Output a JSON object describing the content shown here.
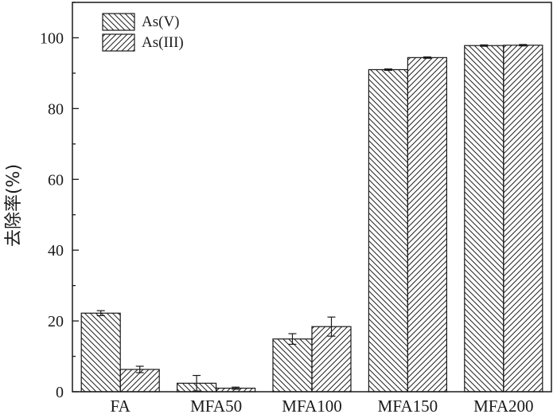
{
  "chart_data": {
    "type": "bar",
    "categories": [
      "FA",
      "MFA50",
      "MFA100",
      "MFA150",
      "MFA200"
    ],
    "series": [
      {
        "name": "As(V)",
        "values": [
          22.2,
          2.4,
          14.9,
          91.0,
          97.8
        ],
        "errors": [
          0.7,
          2.2,
          1.5,
          0.2,
          0.2
        ],
        "pattern": "backslash-hatch"
      },
      {
        "name": "As(III)",
        "values": [
          6.3,
          1.0,
          18.4,
          94.4,
          97.9
        ],
        "errors": [
          0.9,
          0.3,
          2.7,
          0.2,
          0.2
        ],
        "pattern": "slash-hatch"
      }
    ],
    "xlabel": "",
    "ylabel": "去除率(%)",
    "ylim": [
      0,
      110
    ],
    "yticks": [
      0,
      20,
      40,
      60,
      80,
      100
    ],
    "ytick_labels": [
      "0",
      "20",
      "40",
      "60",
      "80",
      "100"
    ],
    "grid": false,
    "legend_position": "top-left",
    "colors": {
      "bar_fill": "#ffffff",
      "hatch": "#222222",
      "axis": "#1a1a1a"
    }
  }
}
